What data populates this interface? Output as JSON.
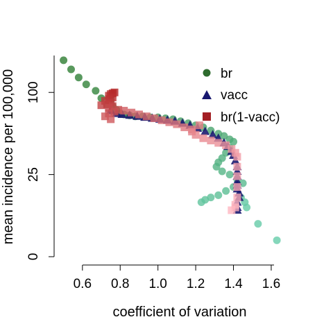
{
  "chart_data": {
    "type": "scatter",
    "title": "",
    "xlabel": "coefficient of variation",
    "ylabel": "mean incidence per 100,000",
    "xlim": [
      0.45,
      1.67
    ],
    "ylim": [
      0,
      150
    ],
    "x_ticks": [
      0.6,
      0.8,
      1.0,
      1.2,
      1.4,
      1.6
    ],
    "x_tick_labels": [
      "0.6",
      "0.8",
      "1.0",
      "1.2",
      "1.4",
      "1.6"
    ],
    "y_ticks": [
      0,
      25,
      100
    ],
    "y_tick_labels": [
      "0",
      "25",
      "100"
    ],
    "y_scale": "sqrt",
    "grid": false,
    "legend_position": "top-right",
    "series": [
      {
        "name": "br",
        "marker": "circle",
        "color": "#2e7d32",
        "color_end": "#66cdaa",
        "points": [
          [
            0.5,
            143
          ],
          [
            0.54,
            130
          ],
          [
            0.58,
            119
          ],
          [
            0.62,
            110
          ],
          [
            0.67,
            102
          ],
          [
            0.7,
            93
          ],
          [
            0.73,
            86
          ],
          [
            0.75,
            91
          ],
          [
            0.76,
            84
          ],
          [
            0.78,
            80
          ],
          [
            0.8,
            76
          ],
          [
            0.82,
            75
          ],
          [
            0.85,
            74
          ],
          [
            0.88,
            73
          ],
          [
            0.92,
            73
          ],
          [
            0.96,
            72
          ],
          [
            1.0,
            72
          ],
          [
            1.04,
            71
          ],
          [
            1.08,
            70
          ],
          [
            1.12,
            68
          ],
          [
            1.16,
            66
          ],
          [
            1.2,
            64
          ],
          [
            1.24,
            62
          ],
          [
            1.28,
            59
          ],
          [
            1.32,
            56
          ],
          [
            1.35,
            54
          ],
          [
            1.38,
            51
          ],
          [
            1.4,
            49
          ],
          [
            1.38,
            44
          ],
          [
            1.36,
            40
          ],
          [
            1.34,
            36
          ],
          [
            1.32,
            33
          ],
          [
            1.31,
            30
          ],
          [
            1.34,
            27
          ],
          [
            1.38,
            25
          ],
          [
            1.42,
            22
          ],
          [
            1.45,
            20
          ],
          [
            1.4,
            18
          ],
          [
            1.36,
            16
          ],
          [
            1.32,
            14
          ],
          [
            1.28,
            13
          ],
          [
            1.25,
            12
          ],
          [
            1.23,
            11
          ],
          [
            1.44,
            13
          ],
          [
            1.46,
            11
          ],
          [
            1.47,
            9
          ],
          [
            1.53,
            4
          ],
          [
            1.63,
            1
          ]
        ]
      },
      {
        "name": "vacc",
        "marker": "triangle",
        "color": "#191970",
        "color_end": "#191970",
        "points": [
          [
            0.75,
            79
          ],
          [
            0.78,
            76
          ],
          [
            0.81,
            75
          ],
          [
            0.85,
            74
          ],
          [
            0.89,
            73
          ],
          [
            0.93,
            72
          ],
          [
            0.97,
            71
          ],
          [
            1.01,
            70
          ],
          [
            1.05,
            69
          ],
          [
            1.09,
            68
          ],
          [
            1.13,
            66
          ],
          [
            1.17,
            64
          ],
          [
            1.21,
            61
          ],
          [
            1.25,
            58
          ],
          [
            1.29,
            55
          ],
          [
            1.32,
            52
          ],
          [
            1.35,
            48
          ],
          [
            1.37,
            45
          ],
          [
            1.39,
            41
          ],
          [
            1.4,
            38
          ],
          [
            1.41,
            34
          ],
          [
            1.42,
            30
          ],
          [
            1.42,
            27
          ],
          [
            1.42,
            24
          ],
          [
            1.42,
            21
          ],
          [
            1.42,
            19
          ],
          [
            1.42,
            17
          ],
          [
            1.43,
            15
          ],
          [
            1.43,
            13
          ],
          [
            1.42,
            11
          ],
          [
            1.42,
            9
          ],
          [
            1.42,
            8
          ]
        ]
      },
      {
        "name": "br(1-vacc)",
        "marker": "square",
        "color": "#b22222",
        "color_end": "#ffb6c1",
        "points": [
          [
            0.77,
            100
          ],
          [
            0.76,
            99
          ],
          [
            0.75,
            98
          ],
          [
            0.74,
            96
          ],
          [
            0.76,
            94
          ],
          [
            0.74,
            92
          ],
          [
            0.72,
            90
          ],
          [
            0.75,
            88
          ],
          [
            0.73,
            86
          ],
          [
            0.7,
            85
          ],
          [
            0.76,
            84
          ],
          [
            0.74,
            82
          ],
          [
            0.79,
            80
          ],
          [
            0.77,
            78
          ],
          [
            0.74,
            76
          ],
          [
            0.72,
            73
          ],
          [
            0.75,
            70
          ],
          [
            0.82,
            79
          ],
          [
            0.86,
            77
          ],
          [
            0.9,
            75
          ],
          [
            0.94,
            73
          ],
          [
            0.98,
            71
          ],
          [
            1.02,
            69
          ],
          [
            1.06,
            67
          ],
          [
            1.1,
            65
          ],
          [
            1.14,
            62
          ],
          [
            1.18,
            60
          ],
          [
            1.22,
            64
          ],
          [
            1.18,
            58
          ],
          [
            1.2,
            55
          ],
          [
            1.24,
            52
          ],
          [
            1.28,
            50
          ],
          [
            1.32,
            48
          ],
          [
            1.36,
            46
          ],
          [
            1.39,
            43
          ],
          [
            1.41,
            40
          ],
          [
            1.42,
            37
          ],
          [
            1.42,
            30
          ],
          [
            1.42,
            24
          ],
          [
            1.42,
            18
          ],
          [
            1.42,
            13
          ],
          [
            1.41,
            10
          ],
          [
            1.41,
            9
          ],
          [
            1.39,
            8
          ]
        ]
      }
    ]
  }
}
